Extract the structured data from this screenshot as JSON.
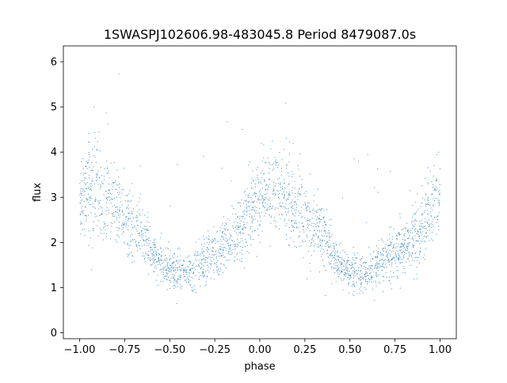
{
  "chart_data": {
    "type": "scatter",
    "title": "1SWASPJ102606.98-483045.8 Period 8479087.0s",
    "xlabel": "phase",
    "ylabel": "flux",
    "xlim": [
      -1.09,
      1.09
    ],
    "ylim": [
      -0.13,
      6.35
    ],
    "x_ticks": [
      -1.0,
      -0.75,
      -0.5,
      -0.25,
      0.0,
      0.25,
      0.5,
      0.75,
      1.0
    ],
    "x_tick_labels": [
      "−1.00",
      "−0.75",
      "−0.50",
      "−0.25",
      "0.00",
      "0.25",
      "0.50",
      "0.75",
      "1.00"
    ],
    "y_ticks": [
      0,
      1,
      2,
      3,
      4,
      5,
      6
    ],
    "y_tick_labels": [
      "0",
      "1",
      "2",
      "3",
      "4",
      "5",
      "6"
    ],
    "grid": false,
    "legend": "none",
    "marker_color": "#1f77b4",
    "series": [
      {
        "phase_range": [
          -1.0,
          1.0
        ],
        "profile_x": [
          -1.0,
          -0.95,
          -0.9,
          -0.85,
          -0.8,
          -0.75,
          -0.7,
          -0.65,
          -0.6,
          -0.55,
          -0.5,
          -0.45,
          -0.4,
          -0.35,
          -0.3,
          -0.25,
          -0.2,
          -0.15,
          -0.1,
          -0.05,
          0.0
        ],
        "median_flux": [
          3.0,
          3.2,
          3.1,
          2.9,
          2.7,
          2.5,
          2.4,
          2.2,
          1.8,
          1.5,
          1.4,
          1.35,
          1.3,
          1.5,
          1.6,
          1.75,
          1.9,
          2.0,
          2.3,
          2.7,
          3.0
        ],
        "flux_spread": [
          0.9,
          1.0,
          0.9,
          0.8,
          0.7,
          0.7,
          0.7,
          0.6,
          0.5,
          0.4,
          0.4,
          0.4,
          0.4,
          0.45,
          0.5,
          0.5,
          0.5,
          0.6,
          0.7,
          0.8,
          0.9
        ]
      }
    ]
  }
}
